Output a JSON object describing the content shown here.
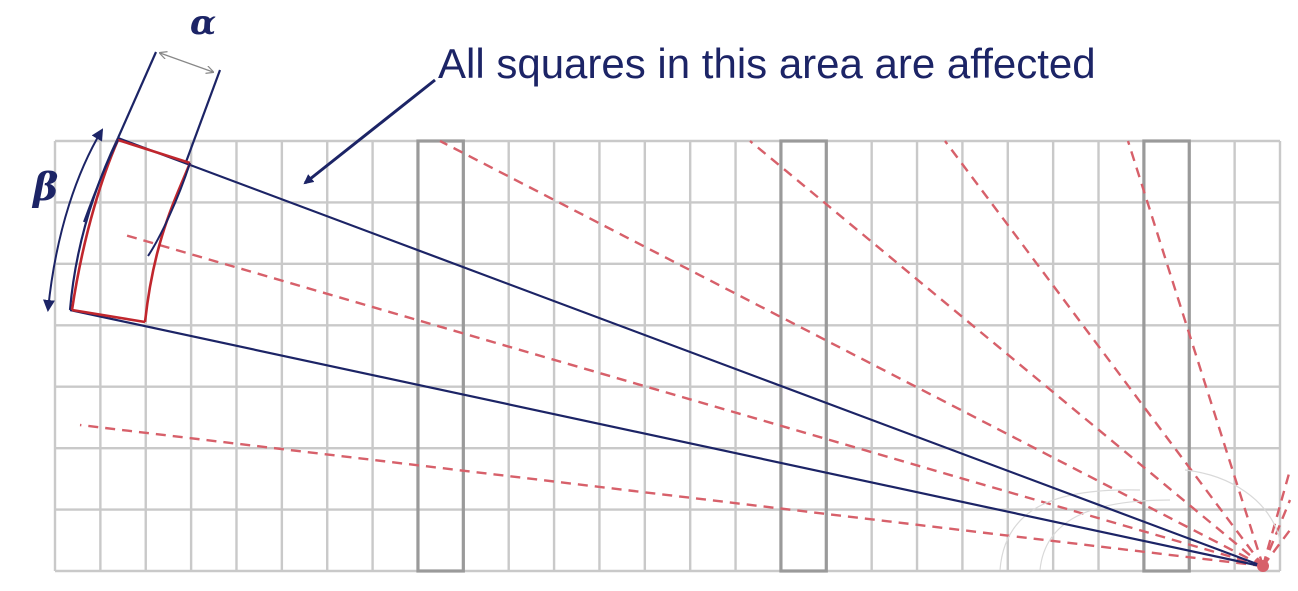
{
  "labels": {
    "annotation": "All squares in this area are affected",
    "alpha": "α",
    "beta": "β"
  },
  "colors": {
    "grid": "#c9c9c9",
    "grid_bold": "#9a9a9a",
    "beam_outline": "#1c2466",
    "pixel_outline": "#c0262d",
    "rays": "#d7606a",
    "text": "#1c2466"
  }
}
